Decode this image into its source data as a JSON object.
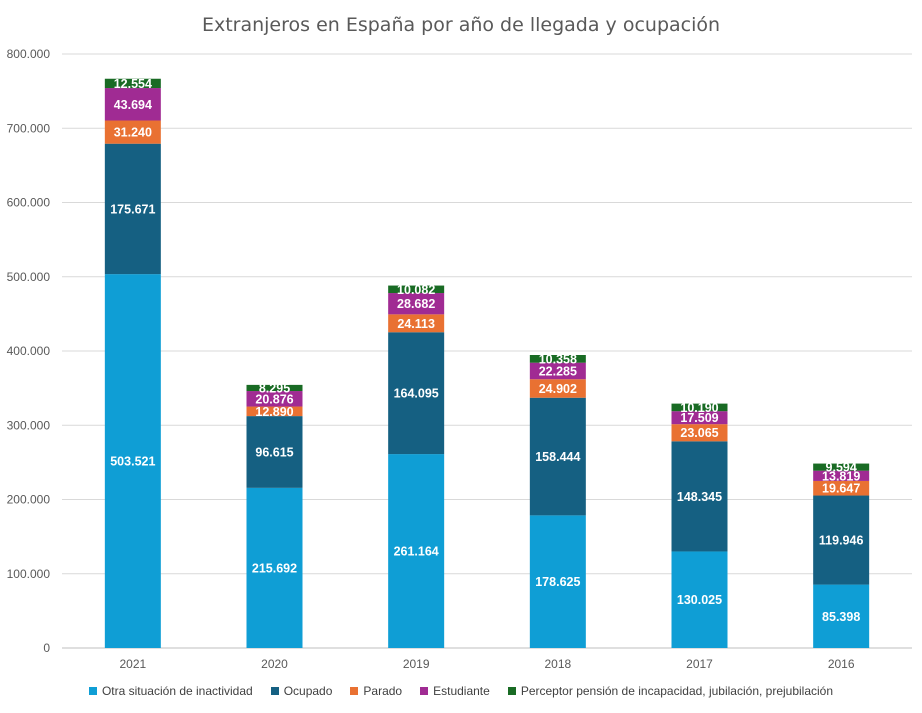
{
  "chart_data": {
    "type": "bar",
    "stacked": true,
    "title": "Extranjeros en España por año de llegada y ocupación",
    "categories": [
      "2021",
      "2020",
      "2019",
      "2018",
      "2017",
      "2016"
    ],
    "ylim": [
      0,
      800000
    ],
    "yticks": [
      "0",
      "100.000",
      "200.000",
      "300.000",
      "400.000",
      "500.000",
      "600.000",
      "700.000",
      "800.000"
    ],
    "grid": true,
    "legend_position": "bottom",
    "series": [
      {
        "name": "Otra situación de inactividad",
        "color": "#0f9ed5",
        "values": [
          503521,
          215692,
          261164,
          178625,
          130025,
          85398
        ],
        "labels": [
          "503.521",
          "215.692",
          "261.164",
          "178.625",
          "130.025",
          "85.398"
        ]
      },
      {
        "name": "Ocupado",
        "color": "#156082",
        "values": [
          175671,
          96615,
          164095,
          158444,
          148345,
          119946
        ],
        "labels": [
          "175.671",
          "96.615",
          "164.095",
          "158.444",
          "148.345",
          "119.946"
        ]
      },
      {
        "name": "Parado",
        "color": "#e97132",
        "values": [
          31240,
          12890,
          24113,
          24902,
          23065,
          19647
        ],
        "labels": [
          "31.240",
          "12.890",
          "24.113",
          "24.902",
          "23.065",
          "19.647"
        ]
      },
      {
        "name": "Estudiante",
        "color": "#a02b93",
        "values": [
          43694,
          20876,
          28682,
          22285,
          17509,
          13819
        ],
        "labels": [
          "43.694",
          "20.876",
          "28.682",
          "22.285",
          "17.509",
          "13.819"
        ]
      },
      {
        "name": "Perceptor pensión de incapacidad, jubilación, prejubilación",
        "color": "#196b24",
        "values": [
          12554,
          8295,
          10082,
          10358,
          10190,
          9594
        ],
        "labels": [
          "12.554",
          "8.295",
          "10.082",
          "10.358",
          "10.190",
          "9.594"
        ]
      }
    ]
  }
}
